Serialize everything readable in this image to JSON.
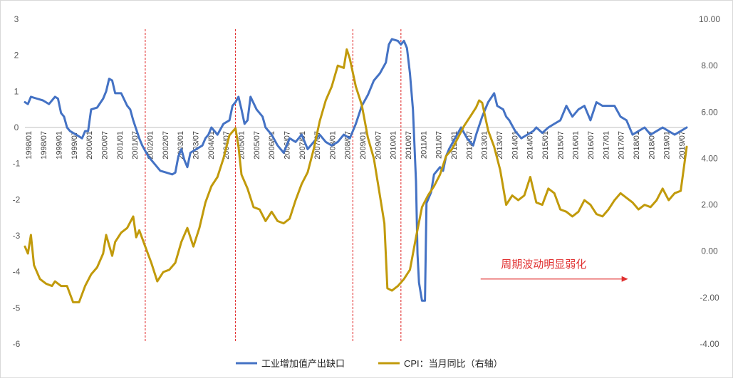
{
  "chart_data": {
    "type": "line",
    "x_tick_labels": [
      "1998/01",
      "1998/07",
      "1999/01",
      "1999/07",
      "2000/01",
      "2000/07",
      "2001/01",
      "2001/07",
      "2002/01",
      "2002/07",
      "2003/01",
      "2003/07",
      "2004/01",
      "2004/07",
      "2005/01",
      "2005/07",
      "2006/01",
      "2006/07",
      "2007/01",
      "2007/07",
      "2008/01",
      "2008/07",
      "2009/01",
      "2009/07",
      "2010/01",
      "2010/07",
      "2011/01",
      "2011/07",
      "2012/01",
      "2012/07",
      "2013/01",
      "2013/07",
      "2014/01",
      "2014/07",
      "2015/01",
      "2015/07",
      "2016/01",
      "2016/07",
      "2017/01",
      "2017/07",
      "2018/01",
      "2018/07",
      "2019/01",
      "2019/07"
    ],
    "y_left": {
      "ticks": [
        "3",
        "2",
        "1",
        "0",
        "-1",
        "-2",
        "-3",
        "-4",
        "-5",
        "-6"
      ],
      "range": [
        -6,
        3
      ]
    },
    "y_right": {
      "ticks": [
        "10.00",
        "8.00",
        "6.00",
        "4.00",
        "2.00",
        "0.00",
        "-2.00",
        "-4.00"
      ],
      "range": [
        -4,
        10
      ]
    },
    "x_range": [
      1998.0,
      2020.0
    ],
    "vertical_markers": [
      2002.0,
      2005.0,
      2008.9,
      2010.5
    ],
    "annotation": {
      "text": "周期波动明显弱化",
      "color": "#e03030",
      "arrow": {
        "from_x": 2013.15,
        "to_x": 2018.05,
        "y": -4.2
      }
    },
    "series": [
      {
        "name": "工业增加值产出缺口",
        "axis": "left",
        "color": "#4472c4",
        "points": [
          [
            1998.0,
            0.7
          ],
          [
            1998.1,
            0.65
          ],
          [
            1998.2,
            0.85
          ],
          [
            1998.4,
            0.8
          ],
          [
            1998.6,
            0.75
          ],
          [
            1998.8,
            0.65
          ],
          [
            1999.0,
            0.85
          ],
          [
            1999.1,
            0.8
          ],
          [
            1999.2,
            0.4
          ],
          [
            1999.3,
            0.3
          ],
          [
            1999.4,
            0.0
          ],
          [
            1999.5,
            -0.1
          ],
          [
            1999.7,
            -0.2
          ],
          [
            1999.9,
            -0.3
          ],
          [
            2000.0,
            -0.1
          ],
          [
            2000.1,
            -0.1
          ],
          [
            2000.2,
            0.5
          ],
          [
            2000.4,
            0.55
          ],
          [
            2000.6,
            0.8
          ],
          [
            2000.7,
            1.0
          ],
          [
            2000.8,
            1.35
          ],
          [
            2000.9,
            1.3
          ],
          [
            2001.0,
            0.95
          ],
          [
            2001.2,
            0.95
          ],
          [
            2001.4,
            0.6
          ],
          [
            2001.5,
            0.5
          ],
          [
            2001.6,
            0.2
          ],
          [
            2001.8,
            -0.3
          ],
          [
            2001.9,
            -0.5
          ],
          [
            2002.1,
            -0.8
          ],
          [
            2002.3,
            -1.0
          ],
          [
            2002.5,
            -1.2
          ],
          [
            2002.7,
            -1.25
          ],
          [
            2002.9,
            -1.3
          ],
          [
            2003.0,
            -1.25
          ],
          [
            2003.1,
            -0.8
          ],
          [
            2003.2,
            -0.6
          ],
          [
            2003.3,
            -0.9
          ],
          [
            2003.4,
            -1.1
          ],
          [
            2003.5,
            -0.7
          ],
          [
            2003.7,
            -0.6
          ],
          [
            2003.9,
            -0.5
          ],
          [
            2004.0,
            -0.3
          ],
          [
            2004.1,
            -0.2
          ],
          [
            2004.2,
            0.0
          ],
          [
            2004.4,
            -0.2
          ],
          [
            2004.6,
            0.1
          ],
          [
            2004.8,
            0.2
          ],
          [
            2004.9,
            0.6
          ],
          [
            2005.0,
            0.7
          ],
          [
            2005.1,
            0.85
          ],
          [
            2005.2,
            0.5
          ],
          [
            2005.3,
            0.1
          ],
          [
            2005.4,
            0.2
          ],
          [
            2005.5,
            0.85
          ],
          [
            2005.7,
            0.5
          ],
          [
            2005.9,
            0.3
          ],
          [
            2006.0,
            0.0
          ],
          [
            2006.2,
            -0.2
          ],
          [
            2006.4,
            -0.5
          ],
          [
            2006.6,
            -0.7
          ],
          [
            2006.8,
            -0.3
          ],
          [
            2007.0,
            -0.4
          ],
          [
            2007.2,
            -0.2
          ],
          [
            2007.4,
            -0.6
          ],
          [
            2007.6,
            -0.4
          ],
          [
            2007.8,
            -0.2
          ],
          [
            2008.0,
            -0.4
          ],
          [
            2008.2,
            -0.5
          ],
          [
            2008.4,
            -0.4
          ],
          [
            2008.6,
            -0.2
          ],
          [
            2008.8,
            -0.3
          ],
          [
            2009.0,
            0.1
          ],
          [
            2009.2,
            0.6
          ],
          [
            2009.4,
            0.9
          ],
          [
            2009.6,
            1.3
          ],
          [
            2009.8,
            1.5
          ],
          [
            2010.0,
            1.8
          ],
          [
            2010.1,
            2.3
          ],
          [
            2010.2,
            2.45
          ],
          [
            2010.4,
            2.4
          ],
          [
            2010.5,
            2.3
          ],
          [
            2010.6,
            2.4
          ],
          [
            2010.7,
            2.2
          ],
          [
            2010.8,
            1.5
          ],
          [
            2010.9,
            0.5
          ],
          [
            2011.0,
            -1.5
          ],
          [
            2011.05,
            -3.5
          ],
          [
            2011.1,
            -4.3
          ],
          [
            2011.2,
            -4.8
          ],
          [
            2011.3,
            -4.8
          ],
          [
            2011.35,
            -2.1
          ],
          [
            2011.5,
            -1.8
          ],
          [
            2011.6,
            -1.3
          ],
          [
            2011.8,
            -1.1
          ],
          [
            2011.9,
            -1.2
          ],
          [
            2012.0,
            -0.8
          ],
          [
            2012.1,
            -0.6
          ],
          [
            2012.3,
            -0.3
          ],
          [
            2012.5,
            0.0
          ],
          [
            2012.7,
            -0.3
          ],
          [
            2012.9,
            -0.5
          ],
          [
            2013.0,
            -0.2
          ],
          [
            2013.2,
            0.3
          ],
          [
            2013.4,
            0.7
          ],
          [
            2013.6,
            0.95
          ],
          [
            2013.7,
            0.6
          ],
          [
            2013.9,
            0.5
          ],
          [
            2014.0,
            0.3
          ],
          [
            2014.1,
            0.2
          ],
          [
            2014.3,
            -0.1
          ],
          [
            2014.5,
            -0.3
          ],
          [
            2014.7,
            -0.2
          ],
          [
            2014.9,
            -0.1
          ],
          [
            2015.0,
            0.0
          ],
          [
            2015.2,
            -0.15
          ],
          [
            2015.4,
            0.0
          ],
          [
            2015.6,
            0.1
          ],
          [
            2015.8,
            0.2
          ],
          [
            2016.0,
            0.6
          ],
          [
            2016.2,
            0.3
          ],
          [
            2016.4,
            0.5
          ],
          [
            2016.6,
            0.6
          ],
          [
            2016.8,
            0.2
          ],
          [
            2017.0,
            0.7
          ],
          [
            2017.2,
            0.6
          ],
          [
            2017.4,
            0.6
          ],
          [
            2017.6,
            0.6
          ],
          [
            2017.8,
            0.3
          ],
          [
            2018.0,
            0.2
          ],
          [
            2018.2,
            -0.2
          ],
          [
            2018.4,
            -0.1
          ],
          [
            2018.6,
            0.0
          ],
          [
            2018.8,
            -0.2
          ],
          [
            2019.0,
            -0.1
          ],
          [
            2019.2,
            0.0
          ],
          [
            2019.4,
            -0.1
          ],
          [
            2019.6,
            -0.2
          ],
          [
            2019.8,
            -0.1
          ],
          [
            2020.0,
            0.0
          ]
        ]
      },
      {
        "name": "CPI：当月同比（右轴）",
        "axis": "right",
        "color": "#c19a0b",
        "points": [
          [
            1998.0,
            0.2
          ],
          [
            1998.1,
            -0.1
          ],
          [
            1998.2,
            0.7
          ],
          [
            1998.3,
            -0.6
          ],
          [
            1998.5,
            -1.2
          ],
          [
            1998.7,
            -1.4
          ],
          [
            1998.9,
            -1.5
          ],
          [
            1999.0,
            -1.3
          ],
          [
            1999.2,
            -1.5
          ],
          [
            1999.4,
            -1.5
          ],
          [
            1999.6,
            -2.2
          ],
          [
            1999.8,
            -2.2
          ],
          [
            2000.0,
            -1.5
          ],
          [
            2000.2,
            -1.0
          ],
          [
            2000.4,
            -0.7
          ],
          [
            2000.6,
            -0.1
          ],
          [
            2000.7,
            0.7
          ],
          [
            2000.9,
            -0.2
          ],
          [
            2001.0,
            0.4
          ],
          [
            2001.2,
            0.8
          ],
          [
            2001.4,
            1.0
          ],
          [
            2001.6,
            1.5
          ],
          [
            2001.7,
            0.6
          ],
          [
            2001.8,
            0.9
          ],
          [
            2002.0,
            0.2
          ],
          [
            2002.2,
            -0.5
          ],
          [
            2002.4,
            -1.3
          ],
          [
            2002.6,
            -0.9
          ],
          [
            2002.8,
            -0.8
          ],
          [
            2003.0,
            -0.5
          ],
          [
            2003.2,
            0.4
          ],
          [
            2003.4,
            1.0
          ],
          [
            2003.6,
            0.2
          ],
          [
            2003.8,
            1.0
          ],
          [
            2004.0,
            2.1
          ],
          [
            2004.2,
            2.8
          ],
          [
            2004.4,
            3.2
          ],
          [
            2004.6,
            4.0
          ],
          [
            2004.8,
            5.0
          ],
          [
            2005.0,
            5.3
          ],
          [
            2005.1,
            4.5
          ],
          [
            2005.2,
            3.3
          ],
          [
            2005.4,
            2.7
          ],
          [
            2005.6,
            1.9
          ],
          [
            2005.8,
            1.8
          ],
          [
            2006.0,
            1.3
          ],
          [
            2006.2,
            1.7
          ],
          [
            2006.4,
            1.3
          ],
          [
            2006.6,
            1.2
          ],
          [
            2006.8,
            1.4
          ],
          [
            2007.0,
            2.2
          ],
          [
            2007.2,
            2.9
          ],
          [
            2007.4,
            3.4
          ],
          [
            2007.6,
            4.4
          ],
          [
            2007.8,
            5.6
          ],
          [
            2008.0,
            6.5
          ],
          [
            2008.2,
            7.1
          ],
          [
            2008.4,
            8.0
          ],
          [
            2008.6,
            7.9
          ],
          [
            2008.7,
            8.7
          ],
          [
            2008.8,
            8.3
          ],
          [
            2008.9,
            7.7
          ],
          [
            2009.0,
            7.1
          ],
          [
            2009.2,
            6.3
          ],
          [
            2009.4,
            4.9
          ],
          [
            2009.6,
            4.0
          ],
          [
            2009.8,
            2.4
          ],
          [
            2009.95,
            1.2
          ],
          [
            2010.05,
            -1.6
          ],
          [
            2010.2,
            -1.7
          ],
          [
            2010.4,
            -1.5
          ],
          [
            2010.6,
            -1.2
          ],
          [
            2010.8,
            -0.8
          ],
          [
            2011.0,
            0.6
          ],
          [
            2011.2,
            1.9
          ],
          [
            2011.4,
            2.4
          ],
          [
            2011.6,
            2.8
          ],
          [
            2011.8,
            3.3
          ],
          [
            2012.0,
            4.1
          ],
          [
            2012.2,
            4.4
          ],
          [
            2012.4,
            4.9
          ],
          [
            2012.6,
            5.4
          ],
          [
            2012.8,
            5.8
          ],
          [
            2013.0,
            6.2
          ],
          [
            2013.1,
            6.5
          ],
          [
            2013.2,
            6.4
          ],
          [
            2013.4,
            5.2
          ],
          [
            2013.6,
            4.5
          ],
          [
            2013.8,
            3.5
          ],
          [
            2014.0,
            2.0
          ],
          [
            2014.2,
            2.4
          ],
          [
            2014.4,
            2.2
          ],
          [
            2014.6,
            2.4
          ],
          [
            2014.8,
            3.2
          ],
          [
            2015.0,
            2.1
          ],
          [
            2015.2,
            2.0
          ],
          [
            2015.4,
            2.7
          ],
          [
            2015.6,
            2.5
          ],
          [
            2015.8,
            1.8
          ],
          [
            2016.0,
            1.7
          ],
          [
            2016.2,
            1.5
          ],
          [
            2016.4,
            1.7
          ],
          [
            2016.6,
            2.2
          ],
          [
            2016.8,
            2.0
          ],
          [
            2017.0,
            1.6
          ],
          [
            2017.2,
            1.5
          ],
          [
            2017.4,
            1.8
          ],
          [
            2017.6,
            2.2
          ],
          [
            2017.8,
            2.5
          ],
          [
            2018.0,
            2.3
          ],
          [
            2018.2,
            2.1
          ],
          [
            2018.4,
            1.8
          ],
          [
            2018.6,
            2.0
          ],
          [
            2018.8,
            1.9
          ],
          [
            2019.0,
            2.2
          ],
          [
            2019.2,
            2.7
          ],
          [
            2019.4,
            2.2
          ],
          [
            2019.6,
            2.5
          ],
          [
            2019.8,
            2.6
          ],
          [
            2020.0,
            4.5
          ]
        ]
      }
    ],
    "legend": {
      "placement": "bottom"
    }
  }
}
